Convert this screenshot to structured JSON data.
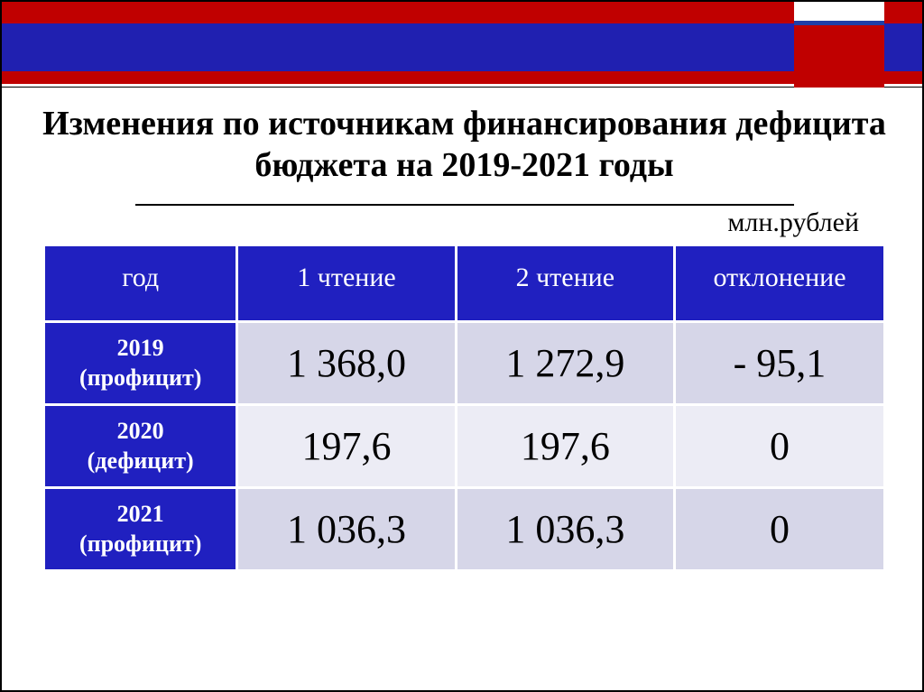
{
  "title": "Изменения по источникам финансирования дефицита бюджета на 2019-2021 годы",
  "unit_label": "млн.рублей",
  "colors": {
    "header_blue": "#2020c0",
    "banner_blue": "#2020b0",
    "banner_red": "#c00000",
    "accent_blue": "#1f3fa8",
    "row_odd_bg": "#d6d6e8",
    "row_even_bg": "#ececf5",
    "text_white": "#ffffff",
    "text_black": "#000000"
  },
  "typography": {
    "title_fontsize": 38,
    "title_weight": "bold",
    "header_fontsize": 30,
    "rowlabel_fontsize": 26,
    "rowlabel_weight": "bold",
    "cell_fontsize": 44,
    "unit_fontsize": 30,
    "font_family": "Times New Roman"
  },
  "table": {
    "type": "table",
    "columns": [
      "год",
      "1 чтение",
      "2 чтение",
      "отклонение"
    ],
    "column_widths_pct": [
      23,
      26,
      26,
      25
    ],
    "rows": [
      {
        "label_year": "2019",
        "label_note": "(профицит)",
        "reading1": "1 368,0",
        "reading2": "1 272,9",
        "deviation": "- 95,1",
        "bg": "odd"
      },
      {
        "label_year": "2020",
        "label_note": "(дефицит)",
        "reading1": "197,6",
        "reading2": "197,6",
        "deviation": "0",
        "bg": "even"
      },
      {
        "label_year": "2021",
        "label_note": "(профицит)",
        "reading1": "1 036,3",
        "reading2": "1 036,3",
        "deviation": "0",
        "bg": "odd"
      }
    ]
  }
}
